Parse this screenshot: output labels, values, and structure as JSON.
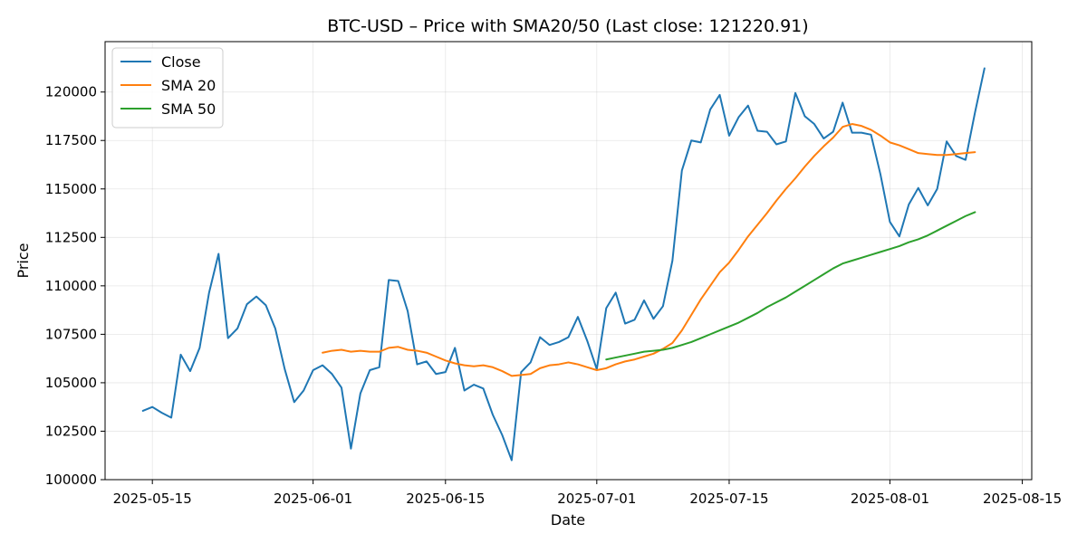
{
  "chart_data": {
    "type": "line",
    "title": "BTC-USD – Price with SMA20/50 (Last close: 121220.91)",
    "xlabel": "Date",
    "ylabel": "Price",
    "ylim": [
      100000,
      122600
    ],
    "xlim": [
      "2025-05-10",
      "2025-08-16"
    ],
    "yticks": [
      100000,
      102500,
      105000,
      107500,
      110000,
      112500,
      115000,
      117500,
      120000
    ],
    "xticks": [
      "2025-05-15",
      "2025-06-01",
      "2025-06-15",
      "2025-07-01",
      "2025-07-15",
      "2025-08-01",
      "2025-08-15"
    ],
    "grid": true,
    "legend": "top-left",
    "series": [
      {
        "name": "Close",
        "color": "#1f77b4",
        "points": [
          [
            "2025-05-14",
            103550
          ],
          [
            "2025-05-15",
            103750
          ],
          [
            "2025-05-16",
            103450
          ],
          [
            "2025-05-17",
            103200
          ],
          [
            "2025-05-18",
            106450
          ],
          [
            "2025-05-19",
            105600
          ],
          [
            "2025-05-20",
            106800
          ],
          [
            "2025-05-21",
            109650
          ],
          [
            "2025-05-22",
            111650
          ],
          [
            "2025-05-23",
            107300
          ],
          [
            "2025-05-24",
            107800
          ],
          [
            "2025-05-25",
            109050
          ],
          [
            "2025-05-26",
            109450
          ],
          [
            "2025-05-27",
            109000
          ],
          [
            "2025-05-28",
            107800
          ],
          [
            "2025-05-29",
            105700
          ],
          [
            "2025-05-30",
            104000
          ],
          [
            "2025-05-31",
            104600
          ],
          [
            "2025-06-01",
            105650
          ],
          [
            "2025-06-02",
            105900
          ],
          [
            "2025-06-03",
            105450
          ],
          [
            "2025-06-04",
            104750
          ],
          [
            "2025-06-05",
            101600
          ],
          [
            "2025-06-06",
            104450
          ],
          [
            "2025-06-07",
            105650
          ],
          [
            "2025-06-08",
            105800
          ],
          [
            "2025-06-09",
            110300
          ],
          [
            "2025-06-10",
            110250
          ],
          [
            "2025-06-11",
            108700
          ],
          [
            "2025-06-12",
            105950
          ],
          [
            "2025-06-13",
            106100
          ],
          [
            "2025-06-14",
            105450
          ],
          [
            "2025-06-15",
            105550
          ],
          [
            "2025-06-16",
            106800
          ],
          [
            "2025-06-17",
            104600
          ],
          [
            "2025-06-18",
            104900
          ],
          [
            "2025-06-19",
            104700
          ],
          [
            "2025-06-20",
            103350
          ],
          [
            "2025-06-21",
            102300
          ],
          [
            "2025-06-22",
            101000
          ],
          [
            "2025-06-23",
            105550
          ],
          [
            "2025-06-24",
            106050
          ],
          [
            "2025-06-25",
            107350
          ],
          [
            "2025-06-26",
            106950
          ],
          [
            "2025-06-27",
            107100
          ],
          [
            "2025-06-28",
            107350
          ],
          [
            "2025-06-29",
            108400
          ],
          [
            "2025-06-30",
            107150
          ],
          [
            "2025-07-01",
            105700
          ],
          [
            "2025-07-02",
            108850
          ],
          [
            "2025-07-03",
            109650
          ],
          [
            "2025-07-04",
            108050
          ],
          [
            "2025-07-05",
            108250
          ],
          [
            "2025-07-06",
            109250
          ],
          [
            "2025-07-07",
            108300
          ],
          [
            "2025-07-08",
            108950
          ],
          [
            "2025-07-09",
            111300
          ],
          [
            "2025-07-10",
            115950
          ],
          [
            "2025-07-11",
            117500
          ],
          [
            "2025-07-12",
            117400
          ],
          [
            "2025-07-13",
            119100
          ],
          [
            "2025-07-14",
            119850
          ],
          [
            "2025-07-15",
            117750
          ],
          [
            "2025-07-16",
            118700
          ],
          [
            "2025-07-17",
            119300
          ],
          [
            "2025-07-18",
            118000
          ],
          [
            "2025-07-19",
            117950
          ],
          [
            "2025-07-20",
            117300
          ],
          [
            "2025-07-21",
            117450
          ],
          [
            "2025-07-22",
            119950
          ],
          [
            "2025-07-23",
            118750
          ],
          [
            "2025-07-24",
            118350
          ],
          [
            "2025-07-25",
            117600
          ],
          [
            "2025-07-26",
            117950
          ],
          [
            "2025-07-27",
            119450
          ],
          [
            "2025-07-28",
            117900
          ],
          [
            "2025-07-29",
            117900
          ],
          [
            "2025-07-30",
            117800
          ],
          [
            "2025-07-31",
            115750
          ],
          [
            "2025-08-01",
            113300
          ],
          [
            "2025-08-02",
            112550
          ],
          [
            "2025-08-03",
            114200
          ],
          [
            "2025-08-04",
            115050
          ],
          [
            "2025-08-05",
            114150
          ],
          [
            "2025-08-06",
            115000
          ],
          [
            "2025-08-07",
            117450
          ],
          [
            "2025-08-08",
            116700
          ],
          [
            "2025-08-09",
            116500
          ],
          [
            "2025-08-10",
            118950
          ],
          [
            "2025-08-11",
            121220.91
          ]
        ]
      },
      {
        "name": "SMA 20",
        "color": "#ff7f0e",
        "points": [
          [
            "2025-06-02",
            106550
          ],
          [
            "2025-06-03",
            106650
          ],
          [
            "2025-06-04",
            106700
          ],
          [
            "2025-06-05",
            106600
          ],
          [
            "2025-06-06",
            106650
          ],
          [
            "2025-06-07",
            106600
          ],
          [
            "2025-06-08",
            106600
          ],
          [
            "2025-06-09",
            106800
          ],
          [
            "2025-06-10",
            106850
          ],
          [
            "2025-06-11",
            106700
          ],
          [
            "2025-06-12",
            106650
          ],
          [
            "2025-06-13",
            106550
          ],
          [
            "2025-06-14",
            106350
          ],
          [
            "2025-06-15",
            106150
          ],
          [
            "2025-06-16",
            106000
          ],
          [
            "2025-06-17",
            105900
          ],
          [
            "2025-06-18",
            105850
          ],
          [
            "2025-06-19",
            105900
          ],
          [
            "2025-06-20",
            105800
          ],
          [
            "2025-06-21",
            105600
          ],
          [
            "2025-06-22",
            105350
          ],
          [
            "2025-06-23",
            105400
          ],
          [
            "2025-06-24",
            105450
          ],
          [
            "2025-06-25",
            105750
          ],
          [
            "2025-06-26",
            105900
          ],
          [
            "2025-06-27",
            105950
          ],
          [
            "2025-06-28",
            106050
          ],
          [
            "2025-06-29",
            105950
          ],
          [
            "2025-06-30",
            105800
          ],
          [
            "2025-07-01",
            105650
          ],
          [
            "2025-07-02",
            105750
          ],
          [
            "2025-07-03",
            105950
          ],
          [
            "2025-07-04",
            106100
          ],
          [
            "2025-07-05",
            106200
          ],
          [
            "2025-07-06",
            106350
          ],
          [
            "2025-07-07",
            106500
          ],
          [
            "2025-07-08",
            106750
          ],
          [
            "2025-07-09",
            107050
          ],
          [
            "2025-07-10",
            107700
          ],
          [
            "2025-07-11",
            108500
          ],
          [
            "2025-07-12",
            109300
          ],
          [
            "2025-07-13",
            110000
          ],
          [
            "2025-07-14",
            110700
          ],
          [
            "2025-07-15",
            111200
          ],
          [
            "2025-07-16",
            111850
          ],
          [
            "2025-07-17",
            112550
          ],
          [
            "2025-07-18",
            113150
          ],
          [
            "2025-07-19",
            113750
          ],
          [
            "2025-07-20",
            114400
          ],
          [
            "2025-07-21",
            115000
          ],
          [
            "2025-07-22",
            115550
          ],
          [
            "2025-07-23",
            116150
          ],
          [
            "2025-07-24",
            116700
          ],
          [
            "2025-07-25",
            117200
          ],
          [
            "2025-07-26",
            117650
          ],
          [
            "2025-07-27",
            118200
          ],
          [
            "2025-07-28",
            118350
          ],
          [
            "2025-07-29",
            118250
          ],
          [
            "2025-07-30",
            118050
          ],
          [
            "2025-07-31",
            117750
          ],
          [
            "2025-08-01",
            117400
          ],
          [
            "2025-08-02",
            117250
          ],
          [
            "2025-08-03",
            117050
          ],
          [
            "2025-08-04",
            116850
          ],
          [
            "2025-08-05",
            116800
          ],
          [
            "2025-08-06",
            116750
          ],
          [
            "2025-08-07",
            116750
          ],
          [
            "2025-08-08",
            116800
          ],
          [
            "2025-08-09",
            116850
          ],
          [
            "2025-08-10",
            116900
          ]
        ]
      },
      {
        "name": "SMA 50",
        "color": "#2ca02c",
        "points": [
          [
            "2025-07-02",
            106200
          ],
          [
            "2025-07-03",
            106300
          ],
          [
            "2025-07-04",
            106400
          ],
          [
            "2025-07-05",
            106500
          ],
          [
            "2025-07-06",
            106600
          ],
          [
            "2025-07-07",
            106650
          ],
          [
            "2025-07-08",
            106700
          ],
          [
            "2025-07-09",
            106800
          ],
          [
            "2025-07-10",
            106950
          ],
          [
            "2025-07-11",
            107100
          ],
          [
            "2025-07-12",
            107300
          ],
          [
            "2025-07-13",
            107500
          ],
          [
            "2025-07-14",
            107700
          ],
          [
            "2025-07-15",
            107900
          ],
          [
            "2025-07-16",
            108100
          ],
          [
            "2025-07-17",
            108350
          ],
          [
            "2025-07-18",
            108600
          ],
          [
            "2025-07-19",
            108900
          ],
          [
            "2025-07-20",
            109150
          ],
          [
            "2025-07-21",
            109400
          ],
          [
            "2025-07-22",
            109700
          ],
          [
            "2025-07-23",
            110000
          ],
          [
            "2025-07-24",
            110300
          ],
          [
            "2025-07-25",
            110600
          ],
          [
            "2025-07-26",
            110900
          ],
          [
            "2025-07-27",
            111150
          ],
          [
            "2025-07-28",
            111300
          ],
          [
            "2025-07-29",
            111450
          ],
          [
            "2025-07-30",
            111600
          ],
          [
            "2025-07-31",
            111750
          ],
          [
            "2025-08-01",
            111900
          ],
          [
            "2025-08-02",
            112050
          ],
          [
            "2025-08-03",
            112250
          ],
          [
            "2025-08-04",
            112400
          ],
          [
            "2025-08-05",
            112600
          ],
          [
            "2025-08-06",
            112850
          ],
          [
            "2025-08-07",
            113100
          ],
          [
            "2025-08-08",
            113350
          ],
          [
            "2025-08-09",
            113600
          ],
          [
            "2025-08-10",
            113800
          ]
        ]
      }
    ]
  }
}
